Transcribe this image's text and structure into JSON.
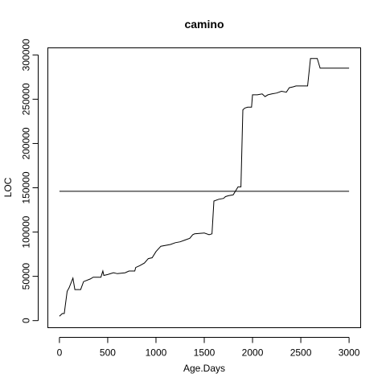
{
  "chart_data": {
    "type": "line",
    "title": "camino",
    "xlabel": "Age.Days",
    "ylabel": "LOC",
    "xlim": [
      -120,
      3120
    ],
    "ylim": [
      -8000,
      308000
    ],
    "x_ticks": [
      0,
      500,
      1000,
      1500,
      2000,
      2500,
      3000
    ],
    "y_ticks": [
      0,
      50000,
      100000,
      150000,
      200000,
      250000,
      300000
    ],
    "grid": false,
    "legend": "none",
    "series": [
      {
        "x": [
          0,
          30,
          50,
          80,
          100,
          140,
          160,
          220,
          250,
          320,
          350,
          430,
          450,
          460,
          500,
          560,
          600,
          680,
          720,
          780,
          790,
          830,
          880,
          920,
          960,
          1000,
          1050,
          1150,
          1200,
          1250,
          1300,
          1350,
          1380,
          1400,
          1450,
          1500,
          1550,
          1580,
          1600,
          1650,
          1700,
          1720,
          1750,
          1800,
          1850,
          1880,
          1900,
          1920,
          1950,
          1990,
          2000,
          2050,
          2100,
          2130,
          2160,
          2200,
          2250,
          2300,
          2350,
          2380,
          2420,
          2450,
          2500,
          2550,
          2570,
          2600,
          2640,
          2670,
          2700,
          2760,
          3000
        ],
        "y": [
          5000,
          8000,
          8000,
          33000,
          37000,
          48000,
          35000,
          35000,
          44000,
          47000,
          49000,
          49000,
          56000,
          51000,
          52000,
          54000,
          53000,
          54000,
          56000,
          56000,
          60000,
          62000,
          65000,
          70000,
          71000,
          78000,
          84000,
          86000,
          88000,
          89000,
          91000,
          93000,
          97000,
          98000,
          98500,
          99000,
          97000,
          98000,
          135000,
          137000,
          138000,
          140000,
          141000,
          142000,
          151000,
          151000,
          238000,
          240000,
          241000,
          241000,
          255000,
          255000,
          256000,
          253000,
          255000,
          256000,
          257000,
          259000,
          258000,
          263000,
          264000,
          265000,
          265000,
          265000,
          265000,
          296000,
          296000,
          296000,
          285000,
          285000,
          285000
        ]
      }
    ],
    "reference_line": {
      "x": [
        0,
        3000
      ],
      "y": [
        146000,
        146000
      ]
    }
  }
}
